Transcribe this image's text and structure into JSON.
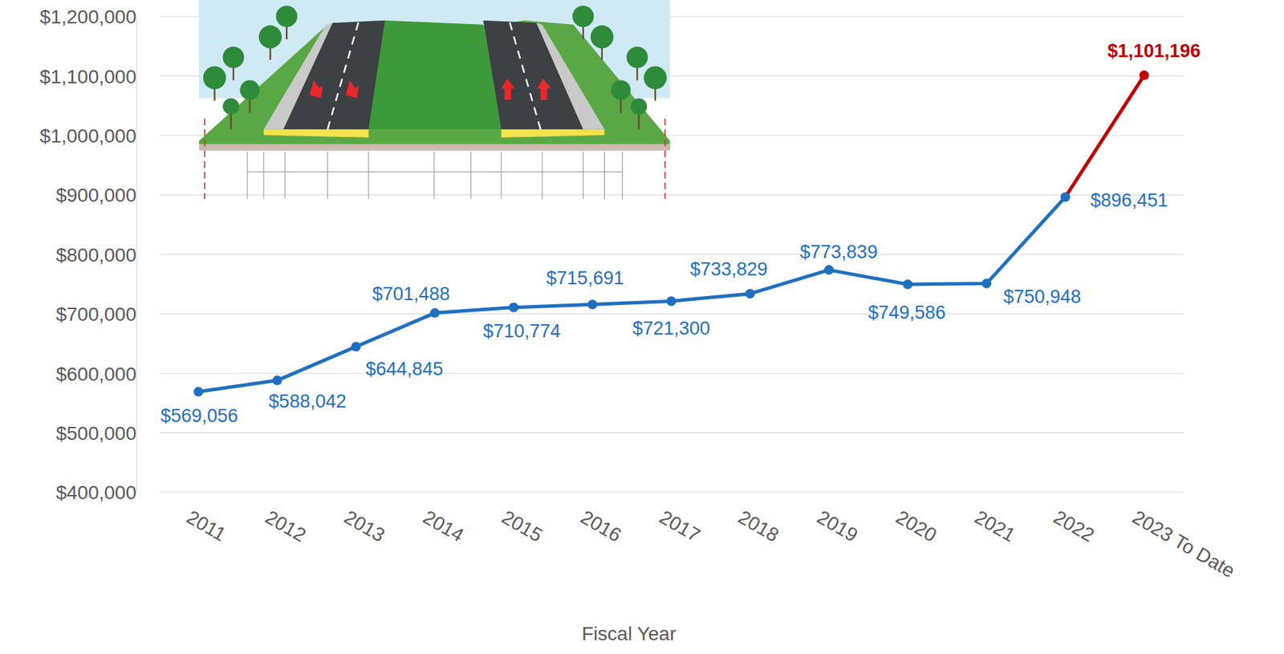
{
  "chart_data": {
    "type": "line",
    "x_label": "Fiscal Year",
    "categories": [
      "2011",
      "2012",
      "2013",
      "2014",
      "2015",
      "2016",
      "2017",
      "2018",
      "2019",
      "2020",
      "2021",
      "2022",
      "2023 To Date"
    ],
    "series": [
      {
        "values": [
          569056,
          588042,
          644845,
          701488,
          710774,
          715691,
          721300,
          733829,
          773839,
          749586,
          750948,
          896451,
          1101196
        ],
        "value_labels": [
          "$569,056",
          "$588,042",
          "$644,845",
          "$701,488",
          "$710,774",
          "$715,691",
          "$721,300",
          "$733,829",
          "$773,839",
          "$749,586",
          "$750,948",
          "$896,451",
          "$1,101,196"
        ],
        "colors": [
          "#1f70c1",
          "#1f70c1",
          "#1f70c1",
          "#1f70c1",
          "#1f70c1",
          "#1f70c1",
          "#1f70c1",
          "#1f70c1",
          "#1f70c1",
          "#1f70c1",
          "#1f70c1",
          "#1f70c1",
          "#c00000"
        ],
        "marker": "circle"
      }
    ],
    "ylim": [
      400000,
      1200000
    ],
    "yticks": [
      {
        "value": 400000,
        "label": "$400,000"
      },
      {
        "value": 500000,
        "label": "$500,000"
      },
      {
        "value": 600000,
        "label": "$600,000"
      },
      {
        "value": 700000,
        "label": "$700,000"
      },
      {
        "value": 800000,
        "label": "$800,000"
      },
      {
        "value": 900000,
        "label": "$900,000"
      },
      {
        "value": 1000000,
        "label": "$1,000,000"
      },
      {
        "value": 1100000,
        "label": "$1,100,000"
      },
      {
        "value": 1200000,
        "label": "$1,200,000"
      }
    ],
    "grid": true,
    "data_labels": true
  }
}
